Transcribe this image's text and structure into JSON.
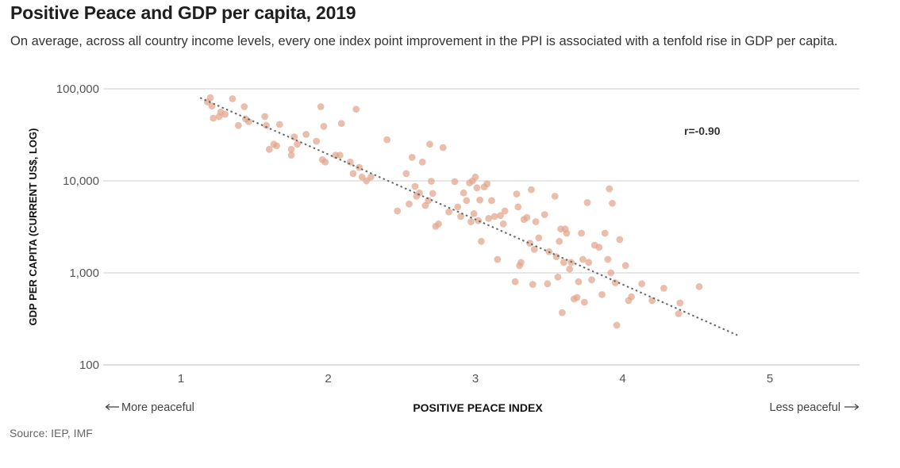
{
  "title": "Positive Peace and GDP per capita, 2019",
  "subtitle": "On average, across all country income levels, every one index point improvement in the PPI is associated with a tenfold rise in GDP per capita.",
  "source": "Source: IEP, IMF",
  "colors": {
    "point": "#e2a58c",
    "trend": "#666666",
    "grid": "#cfcfcf"
  },
  "chart_data": {
    "type": "scatter",
    "xlabel": "POSITIVE PEACE INDEX",
    "ylabel": "GDP PER CAPITA (CURRENT US$, LOG)",
    "x_left_label": "More peaceful",
    "x_right_label": "Less peaceful",
    "x_ticks": [
      1,
      2,
      3,
      4,
      5
    ],
    "y_scale": "log",
    "y_ticks": [
      100,
      1000,
      10000,
      100000
    ],
    "y_tick_labels": [
      "100",
      "1,000",
      "10,000",
      "100,000"
    ],
    "annotation": "r=-0.90",
    "trend": {
      "x": [
        1.13,
        4.78
      ],
      "y": [
        80000,
        210
      ]
    },
    "points": [
      [
        1.18,
        72000
      ],
      [
        1.2,
        80000
      ],
      [
        1.21,
        65000
      ],
      [
        1.22,
        48000
      ],
      [
        1.26,
        50000
      ],
      [
        1.27,
        56000
      ],
      [
        1.3,
        53000
      ],
      [
        1.35,
        78000
      ],
      [
        1.39,
        40000
      ],
      [
        1.43,
        64000
      ],
      [
        1.44,
        47000
      ],
      [
        1.46,
        44000
      ],
      [
        1.57,
        50000
      ],
      [
        1.58,
        40000
      ],
      [
        1.6,
        22000
      ],
      [
        1.63,
        25000
      ],
      [
        1.65,
        24000
      ],
      [
        1.67,
        41000
      ],
      [
        1.75,
        22000
      ],
      [
        1.75,
        19000
      ],
      [
        1.77,
        30000
      ],
      [
        1.79,
        25000
      ],
      [
        1.85,
        32000
      ],
      [
        1.92,
        27000
      ],
      [
        1.95,
        64000
      ],
      [
        1.96,
        17000
      ],
      [
        1.97,
        39000
      ],
      [
        1.98,
        16000
      ],
      [
        2.05,
        19000
      ],
      [
        2.08,
        19000
      ],
      [
        2.09,
        42000
      ],
      [
        2.15,
        16000
      ],
      [
        2.17,
        12000
      ],
      [
        2.19,
        60000
      ],
      [
        2.21,
        14000
      ],
      [
        2.23,
        11000
      ],
      [
        2.26,
        10000
      ],
      [
        2.29,
        11000
      ],
      [
        2.4,
        28000
      ],
      [
        2.47,
        4700
      ],
      [
        2.53,
        12000
      ],
      [
        2.55,
        5600
      ],
      [
        2.57,
        18000
      ],
      [
        2.59,
        8700
      ],
      [
        2.6,
        6800
      ],
      [
        2.62,
        7400
      ],
      [
        2.64,
        16000
      ],
      [
        2.66,
        5400
      ],
      [
        2.68,
        6100
      ],
      [
        2.69,
        25000
      ],
      [
        2.7,
        9900
      ],
      [
        2.71,
        7300
      ],
      [
        2.73,
        3200
      ],
      [
        2.75,
        3400
      ],
      [
        2.78,
        23000
      ],
      [
        2.82,
        4600
      ],
      [
        2.86,
        9800
      ],
      [
        2.88,
        5200
      ],
      [
        2.9,
        4100
      ],
      [
        2.92,
        7400
      ],
      [
        2.94,
        6100
      ],
      [
        2.96,
        9500
      ],
      [
        2.97,
        3600
      ],
      [
        2.98,
        10000
      ],
      [
        2.99,
        4400
      ],
      [
        3.0,
        11000
      ],
      [
        3.01,
        8400
      ],
      [
        3.02,
        3700
      ],
      [
        3.03,
        6200
      ],
      [
        3.04,
        2200
      ],
      [
        3.06,
        8600
      ],
      [
        3.08,
        9300
      ],
      [
        3.09,
        3900
      ],
      [
        3.11,
        6100
      ],
      [
        3.13,
        4100
      ],
      [
        3.15,
        1400
      ],
      [
        3.17,
        4200
      ],
      [
        3.19,
        3400
      ],
      [
        3.2,
        4700
      ],
      [
        3.27,
        800
      ],
      [
        3.28,
        7200
      ],
      [
        3.29,
        5200
      ],
      [
        3.3,
        1200
      ],
      [
        3.31,
        1300
      ],
      [
        3.33,
        3800
      ],
      [
        3.35,
        4000
      ],
      [
        3.37,
        2100
      ],
      [
        3.38,
        8000
      ],
      [
        3.39,
        750
      ],
      [
        3.4,
        1800
      ],
      [
        3.41,
        3600
      ],
      [
        3.43,
        2400
      ],
      [
        3.47,
        4300
      ],
      [
        3.49,
        760
      ],
      [
        3.5,
        1700
      ],
      [
        3.54,
        6800
      ],
      [
        3.55,
        1500
      ],
      [
        3.56,
        900
      ],
      [
        3.57,
        2200
      ],
      [
        3.58,
        3000
      ],
      [
        3.59,
        370
      ],
      [
        3.6,
        1300
      ],
      [
        3.61,
        3000
      ],
      [
        3.62,
        2700
      ],
      [
        3.64,
        1100
      ],
      [
        3.65,
        1300
      ],
      [
        3.67,
        520
      ],
      [
        3.69,
        540
      ],
      [
        3.7,
        800
      ],
      [
        3.72,
        2700
      ],
      [
        3.73,
        1400
      ],
      [
        3.74,
        480
      ],
      [
        3.76,
        5800
      ],
      [
        3.77,
        1300
      ],
      [
        3.79,
        840
      ],
      [
        3.81,
        2000
      ],
      [
        3.84,
        1900
      ],
      [
        3.86,
        580
      ],
      [
        3.88,
        2700
      ],
      [
        3.9,
        1400
      ],
      [
        3.91,
        8200
      ],
      [
        3.92,
        1000
      ],
      [
        3.93,
        5700
      ],
      [
        3.95,
        780
      ],
      [
        3.96,
        270
      ],
      [
        3.98,
        2300
      ],
      [
        4.02,
        1200
      ],
      [
        4.04,
        500
      ],
      [
        4.06,
        550
      ],
      [
        4.13,
        760
      ],
      [
        4.2,
        500
      ],
      [
        4.28,
        680
      ],
      [
        4.38,
        360
      ],
      [
        4.39,
        470
      ],
      [
        4.52,
        710
      ]
    ]
  }
}
